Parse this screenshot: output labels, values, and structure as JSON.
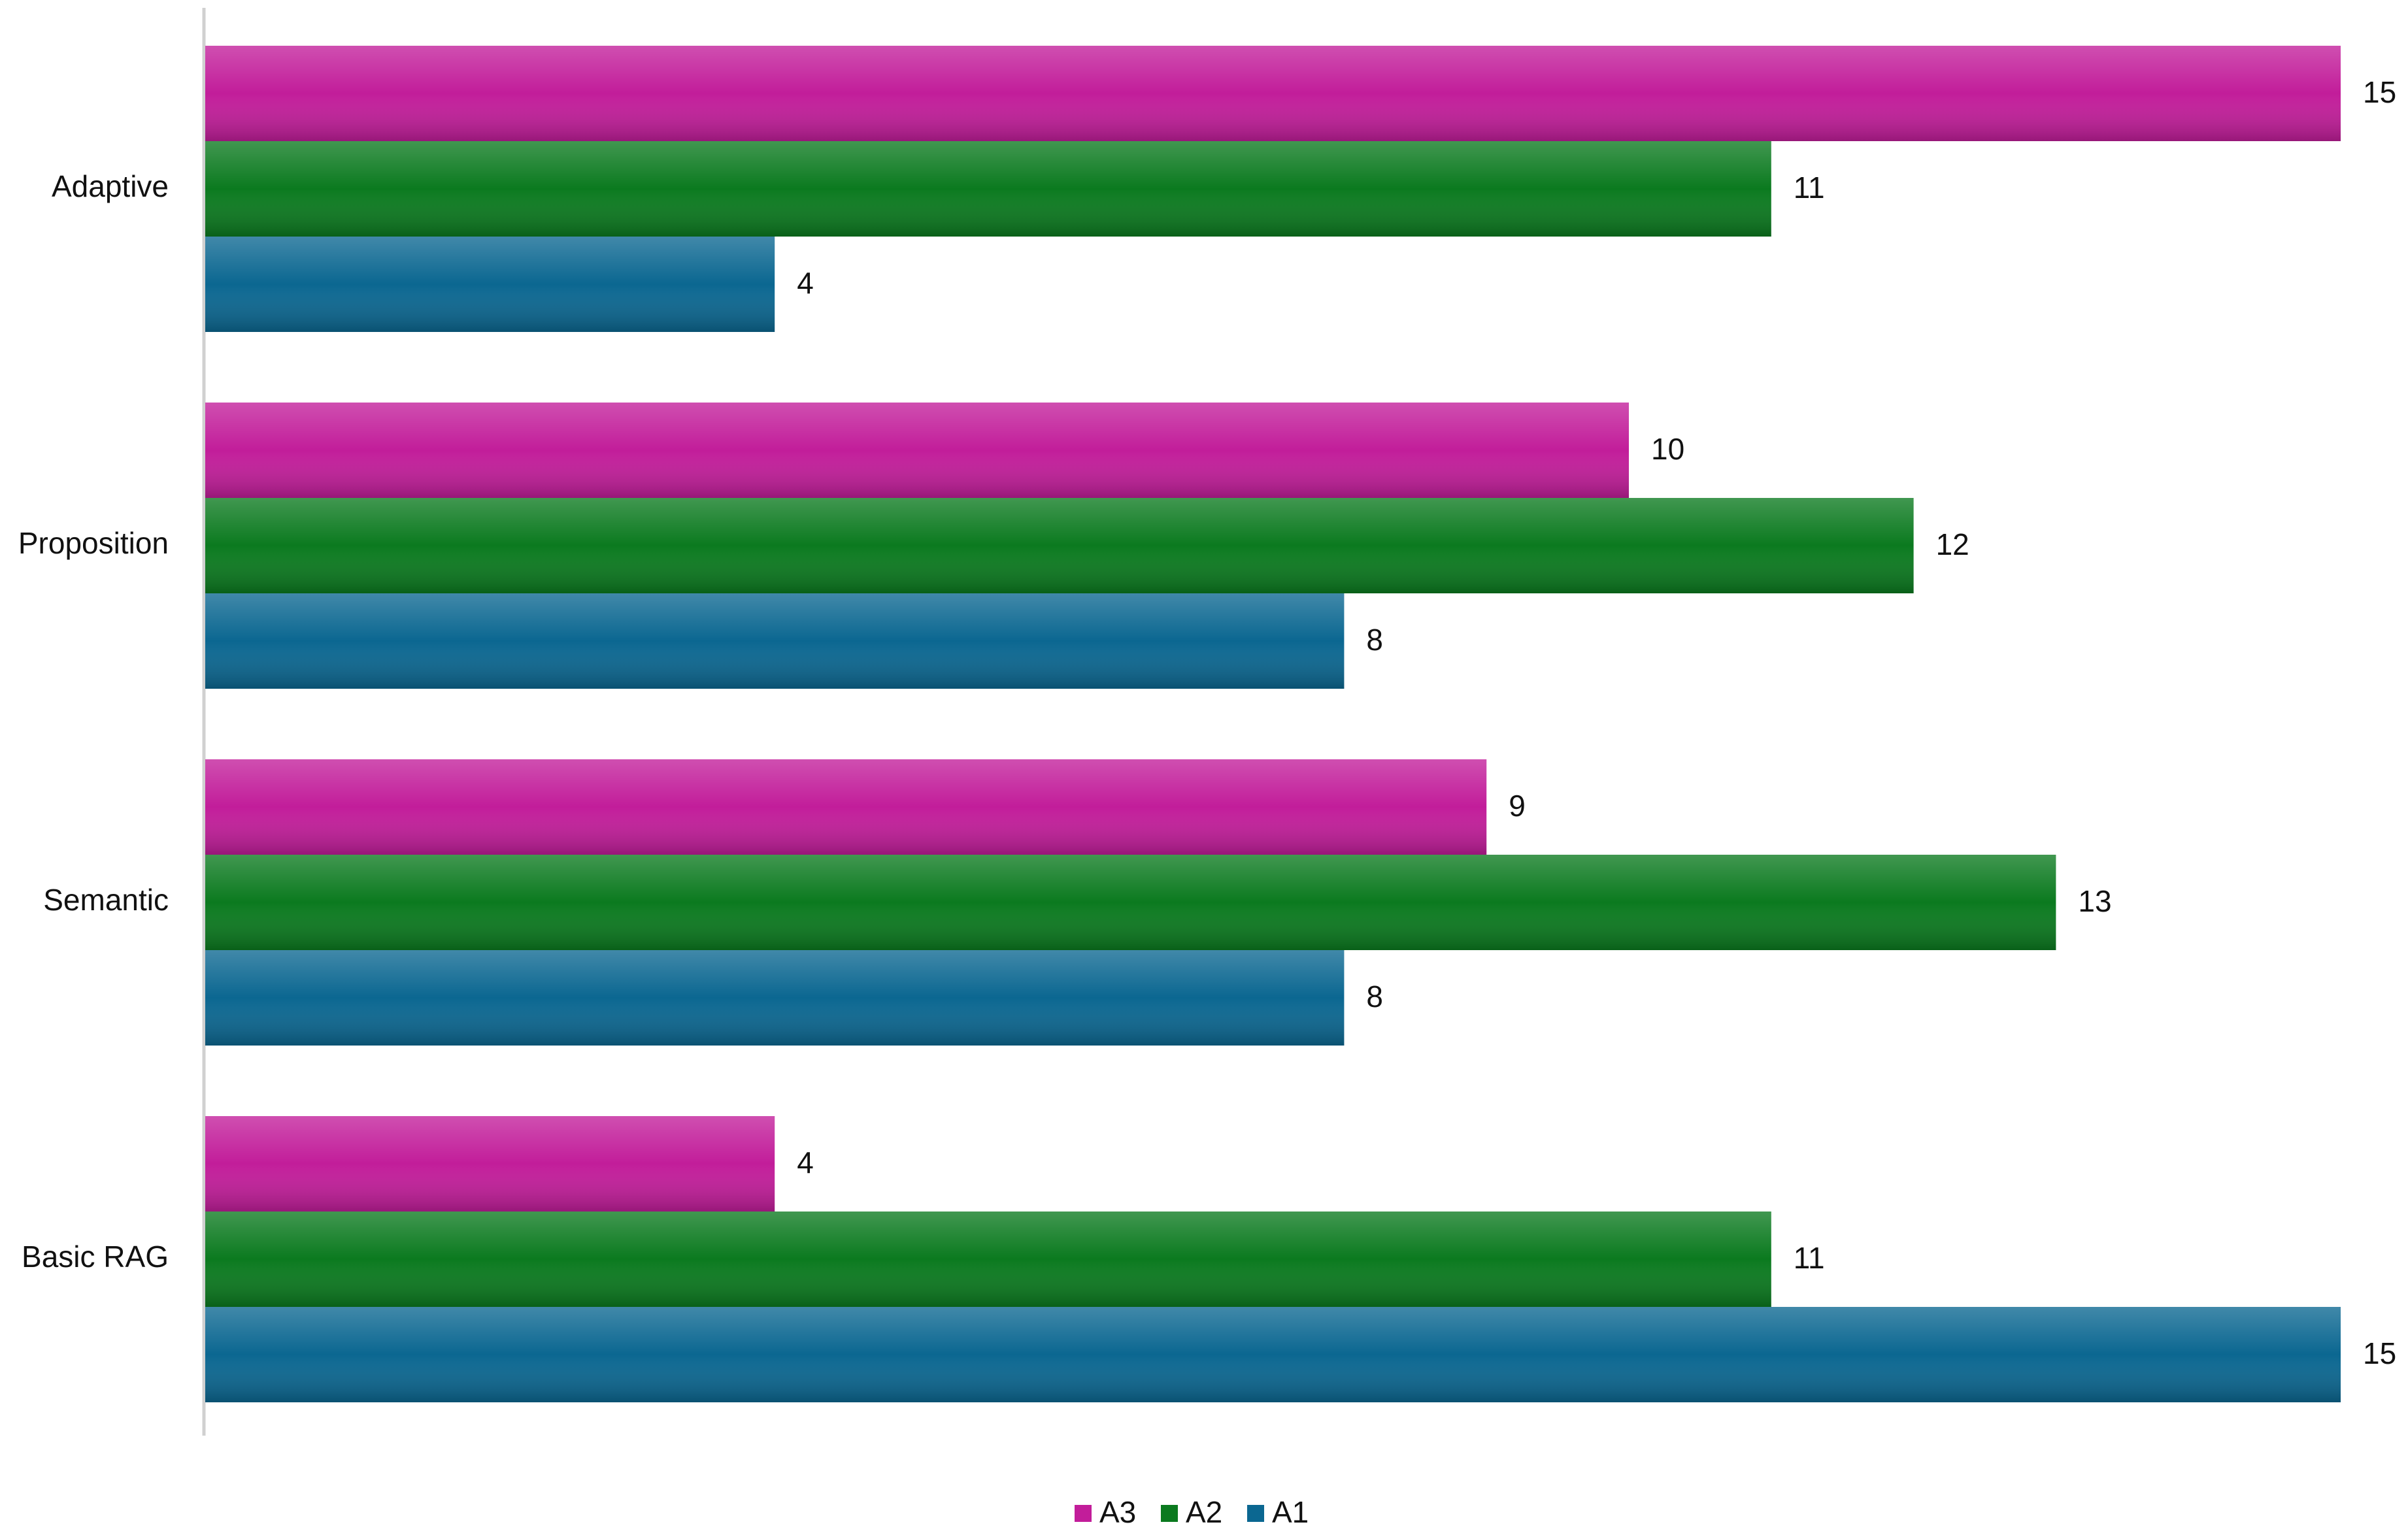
{
  "chart_data": {
    "type": "bar",
    "orientation": "horizontal",
    "categories": [
      "Adaptive",
      "Proposition",
      "Semantic",
      "Basic RAG"
    ],
    "series": [
      {
        "name": "A3",
        "color": "#c21d9a",
        "values": [
          15,
          10,
          9,
          4
        ]
      },
      {
        "name": "A2",
        "color": "#0b7a1f",
        "values": [
          11,
          12,
          13,
          11
        ]
      },
      {
        "name": "A1",
        "color": "#0b6791",
        "values": [
          4,
          8,
          8,
          15
        ]
      }
    ],
    "xlim": [
      0,
      15
    ],
    "legend": "bottom"
  }
}
